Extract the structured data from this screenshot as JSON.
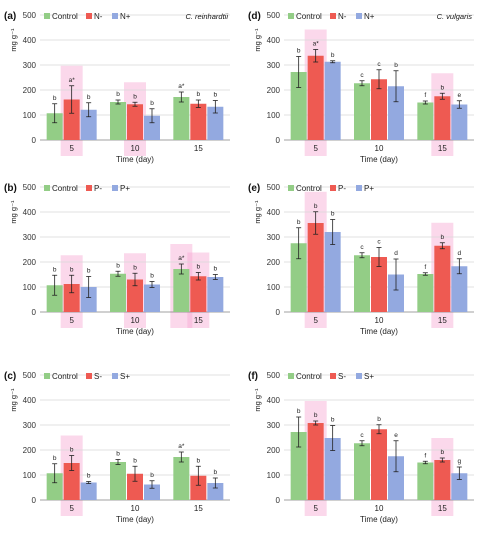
{
  "colors": {
    "Control": "#93cd86",
    "minus": "#ee5a52",
    "plus": "#93a9e0",
    "highlight": "#f6a8d2",
    "axis": "#808080",
    "grid": "#d9d9d9"
  },
  "chart_data": [
    {
      "panel_label": "(a)",
      "species": "C. reinhardtii",
      "type": "bar",
      "ylabel": "mg g⁻¹",
      "xlabel": "Time (day)",
      "ylim": [
        0,
        500
      ],
      "yticks": [
        0,
        100,
        200,
        300,
        400,
        500
      ],
      "categories": [
        "5",
        "10",
        "15"
      ],
      "legend_position": "top-left",
      "series": [
        {
          "name": "Control",
          "values": [
            107,
            152,
            172
          ],
          "errors": [
            38,
            8,
            20
          ],
          "labels": [
            "b",
            "b",
            "a*"
          ]
        },
        {
          "name": "N-",
          "values": [
            162,
            143,
            145
          ],
          "errors": [
            55,
            8,
            15
          ],
          "labels": [
            "a*",
            "b",
            "b"
          ]
        },
        {
          "name": "N+",
          "values": [
            121,
            97,
            133
          ],
          "errors": [
            28,
            28,
            25
          ],
          "labels": [
            "b",
            "b",
            "b"
          ]
        }
      ]
    },
    {
      "panel_label": "(d)",
      "species": "C. vulgaris",
      "type": "bar",
      "ylabel": "mg g⁻¹",
      "xlabel": "Time (day)",
      "ylim": [
        0,
        500
      ],
      "yticks": [
        0,
        100,
        200,
        300,
        400,
        500
      ],
      "categories": [
        "5",
        "10",
        "15"
      ],
      "legend_position": "top-left",
      "series": [
        {
          "name": "Control",
          "values": [
            272,
            227,
            150
          ],
          "errors": [
            62,
            10,
            6
          ],
          "labels": [
            "b",
            "c",
            "f"
          ]
        },
        {
          "name": "N-",
          "values": [
            337,
            243,
            175
          ],
          "errors": [
            25,
            38,
            12
          ],
          "labels": [
            "a*",
            "c",
            "b"
          ]
        },
        {
          "name": "N+",
          "values": [
            313,
            215,
            142
          ],
          "errors": [
            4,
            62,
            15
          ],
          "labels": [
            "b",
            "b",
            "e"
          ]
        }
      ]
    },
    {
      "panel_label": "(b)",
      "species": "",
      "type": "bar",
      "ylabel": "mg g⁻¹",
      "xlabel": "Time (day)",
      "ylim": [
        0,
        500
      ],
      "yticks": [
        0,
        100,
        200,
        300,
        400,
        500
      ],
      "categories": [
        "5",
        "10",
        "15"
      ],
      "legend_position": "top-left",
      "series": [
        {
          "name": "Control",
          "values": [
            107,
            153,
            172
          ],
          "errors": [
            40,
            10,
            20
          ],
          "labels": [
            "b",
            "b",
            "a*"
          ]
        },
        {
          "name": "P-",
          "values": [
            112,
            130,
            143
          ],
          "errors": [
            35,
            25,
            15
          ],
          "labels": [
            "b",
            "b",
            "b"
          ]
        },
        {
          "name": "P+",
          "values": [
            100,
            110,
            140
          ],
          "errors": [
            42,
            12,
            10
          ],
          "labels": [
            "b",
            "b",
            "b"
          ]
        }
      ]
    },
    {
      "panel_label": "(e)",
      "species": "",
      "type": "bar",
      "ylabel": "mg g⁻¹",
      "xlabel": "Time (day)",
      "ylim": [
        0,
        500
      ],
      "yticks": [
        0,
        100,
        200,
        300,
        400,
        500
      ],
      "categories": [
        "5",
        "10",
        "15"
      ],
      "legend_position": "top-left",
      "series": [
        {
          "name": "Control",
          "values": [
            275,
            227,
            152
          ],
          "errors": [
            62,
            10,
            5
          ],
          "labels": [
            "b",
            "c",
            "f"
          ]
        },
        {
          "name": "P-",
          "values": [
            356,
            220,
            265
          ],
          "errors": [
            45,
            38,
            12
          ],
          "labels": [
            "b",
            "c",
            "b"
          ]
        },
        {
          "name": "P+",
          "values": [
            320,
            150,
            183
          ],
          "errors": [
            50,
            62,
            30
          ],
          "labels": [
            "b",
            "d",
            "d"
          ]
        }
      ]
    },
    {
      "panel_label": "(c)",
      "species": "",
      "type": "bar",
      "ylabel": "mg g⁻¹",
      "xlabel": "Time (day)",
      "ylim": [
        0,
        500
      ],
      "yticks": [
        0,
        100,
        200,
        300,
        400,
        500
      ],
      "categories": [
        "5",
        "10",
        "15"
      ],
      "legend_position": "top-left",
      "series": [
        {
          "name": "Control",
          "values": [
            107,
            152,
            172
          ],
          "errors": [
            38,
            10,
            20
          ],
          "labels": [
            "b",
            "b",
            "a*"
          ]
        },
        {
          "name": "S-",
          "values": [
            148,
            105,
            97
          ],
          "errors": [
            30,
            30,
            38
          ],
          "labels": [
            "b",
            "b",
            "b"
          ]
        },
        {
          "name": "S+",
          "values": [
            70,
            62,
            68
          ],
          "errors": [
            4,
            15,
            20
          ],
          "labels": [
            "b",
            "b",
            "b"
          ]
        }
      ]
    },
    {
      "panel_label": "(f)",
      "species": "",
      "type": "bar",
      "ylabel": "mg g⁻¹",
      "xlabel": "Time (day)",
      "ylim": [
        0,
        500
      ],
      "yticks": [
        0,
        100,
        200,
        300,
        400,
        500
      ],
      "categories": [
        "5",
        "10",
        "15"
      ],
      "legend_position": "top-left",
      "series": [
        {
          "name": "Control",
          "values": [
            272,
            227,
            150
          ],
          "errors": [
            60,
            10,
            5
          ],
          "labels": [
            "b",
            "c",
            "f"
          ]
        },
        {
          "name": "S-",
          "values": [
            308,
            283,
            160
          ],
          "errors": [
            8,
            18,
            8
          ],
          "labels": [
            "b",
            "b",
            "b"
          ]
        },
        {
          "name": "S+",
          "values": [
            248,
            175,
            107
          ],
          "errors": [
            50,
            62,
            25
          ],
          "labels": [
            "b",
            "e",
            "g"
          ]
        }
      ]
    }
  ]
}
